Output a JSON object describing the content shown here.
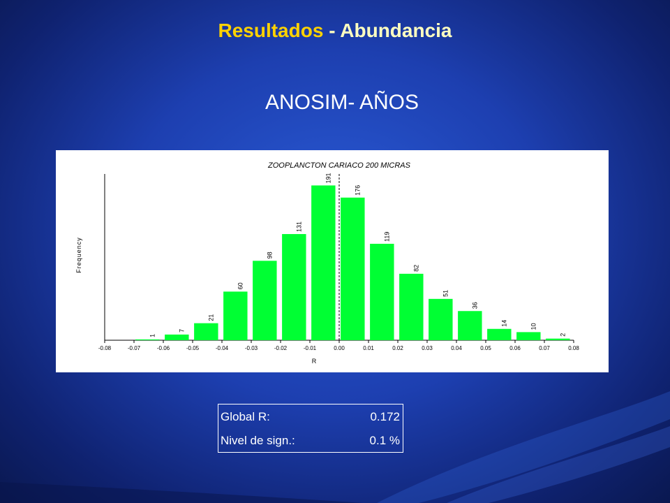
{
  "slide": {
    "title_part1": "Resultados",
    "title_part2": " - Abundancia",
    "subtitle": "ANOSIM- AÑOS"
  },
  "stats": {
    "rows": [
      {
        "label": "Global R:",
        "value": "0.172"
      },
      {
        "label": "Nivel de sign.:",
        "value": "0.1 %"
      }
    ]
  },
  "colors": {
    "bar": "#00ff33",
    "title_accent": "#ffd200",
    "background": "#1d3fb0"
  },
  "chart_data": {
    "type": "bar",
    "title": "ZOOPLANCTON CARIACO 200 MICRAS",
    "xlabel": "R",
    "ylabel": "Frequency",
    "xlim": [
      -0.08,
      0.08
    ],
    "ylim": [
      0,
      200
    ],
    "bin_width": 0.01,
    "x_ticks": [
      "-0.08",
      "-0.07",
      "-0.06",
      "-0.05",
      "-0.04",
      "-0.03",
      "-0.02",
      "-0.01",
      "0.00",
      "0.01",
      "0.02",
      "0.03",
      "0.04",
      "0.05",
      "0.06",
      "0.07",
      "0.08"
    ],
    "x": [
      -0.08,
      -0.07,
      -0.06,
      -0.05,
      -0.04,
      -0.03,
      -0.02,
      -0.01,
      0.0,
      0.01,
      0.02,
      0.03,
      0.04,
      0.05,
      0.06,
      0.07
    ],
    "values": [
      0,
      1,
      7,
      21,
      60,
      98,
      131,
      191,
      176,
      119,
      82,
      51,
      36,
      14,
      10,
      2
    ],
    "data_labels": [
      "",
      "1",
      "7",
      "21",
      "60",
      "98",
      "131",
      "191",
      "176",
      "119",
      "82",
      "51",
      "36",
      "14",
      "10",
      "2"
    ],
    "observed_R": 0.0,
    "grid": false,
    "legend": "none"
  }
}
